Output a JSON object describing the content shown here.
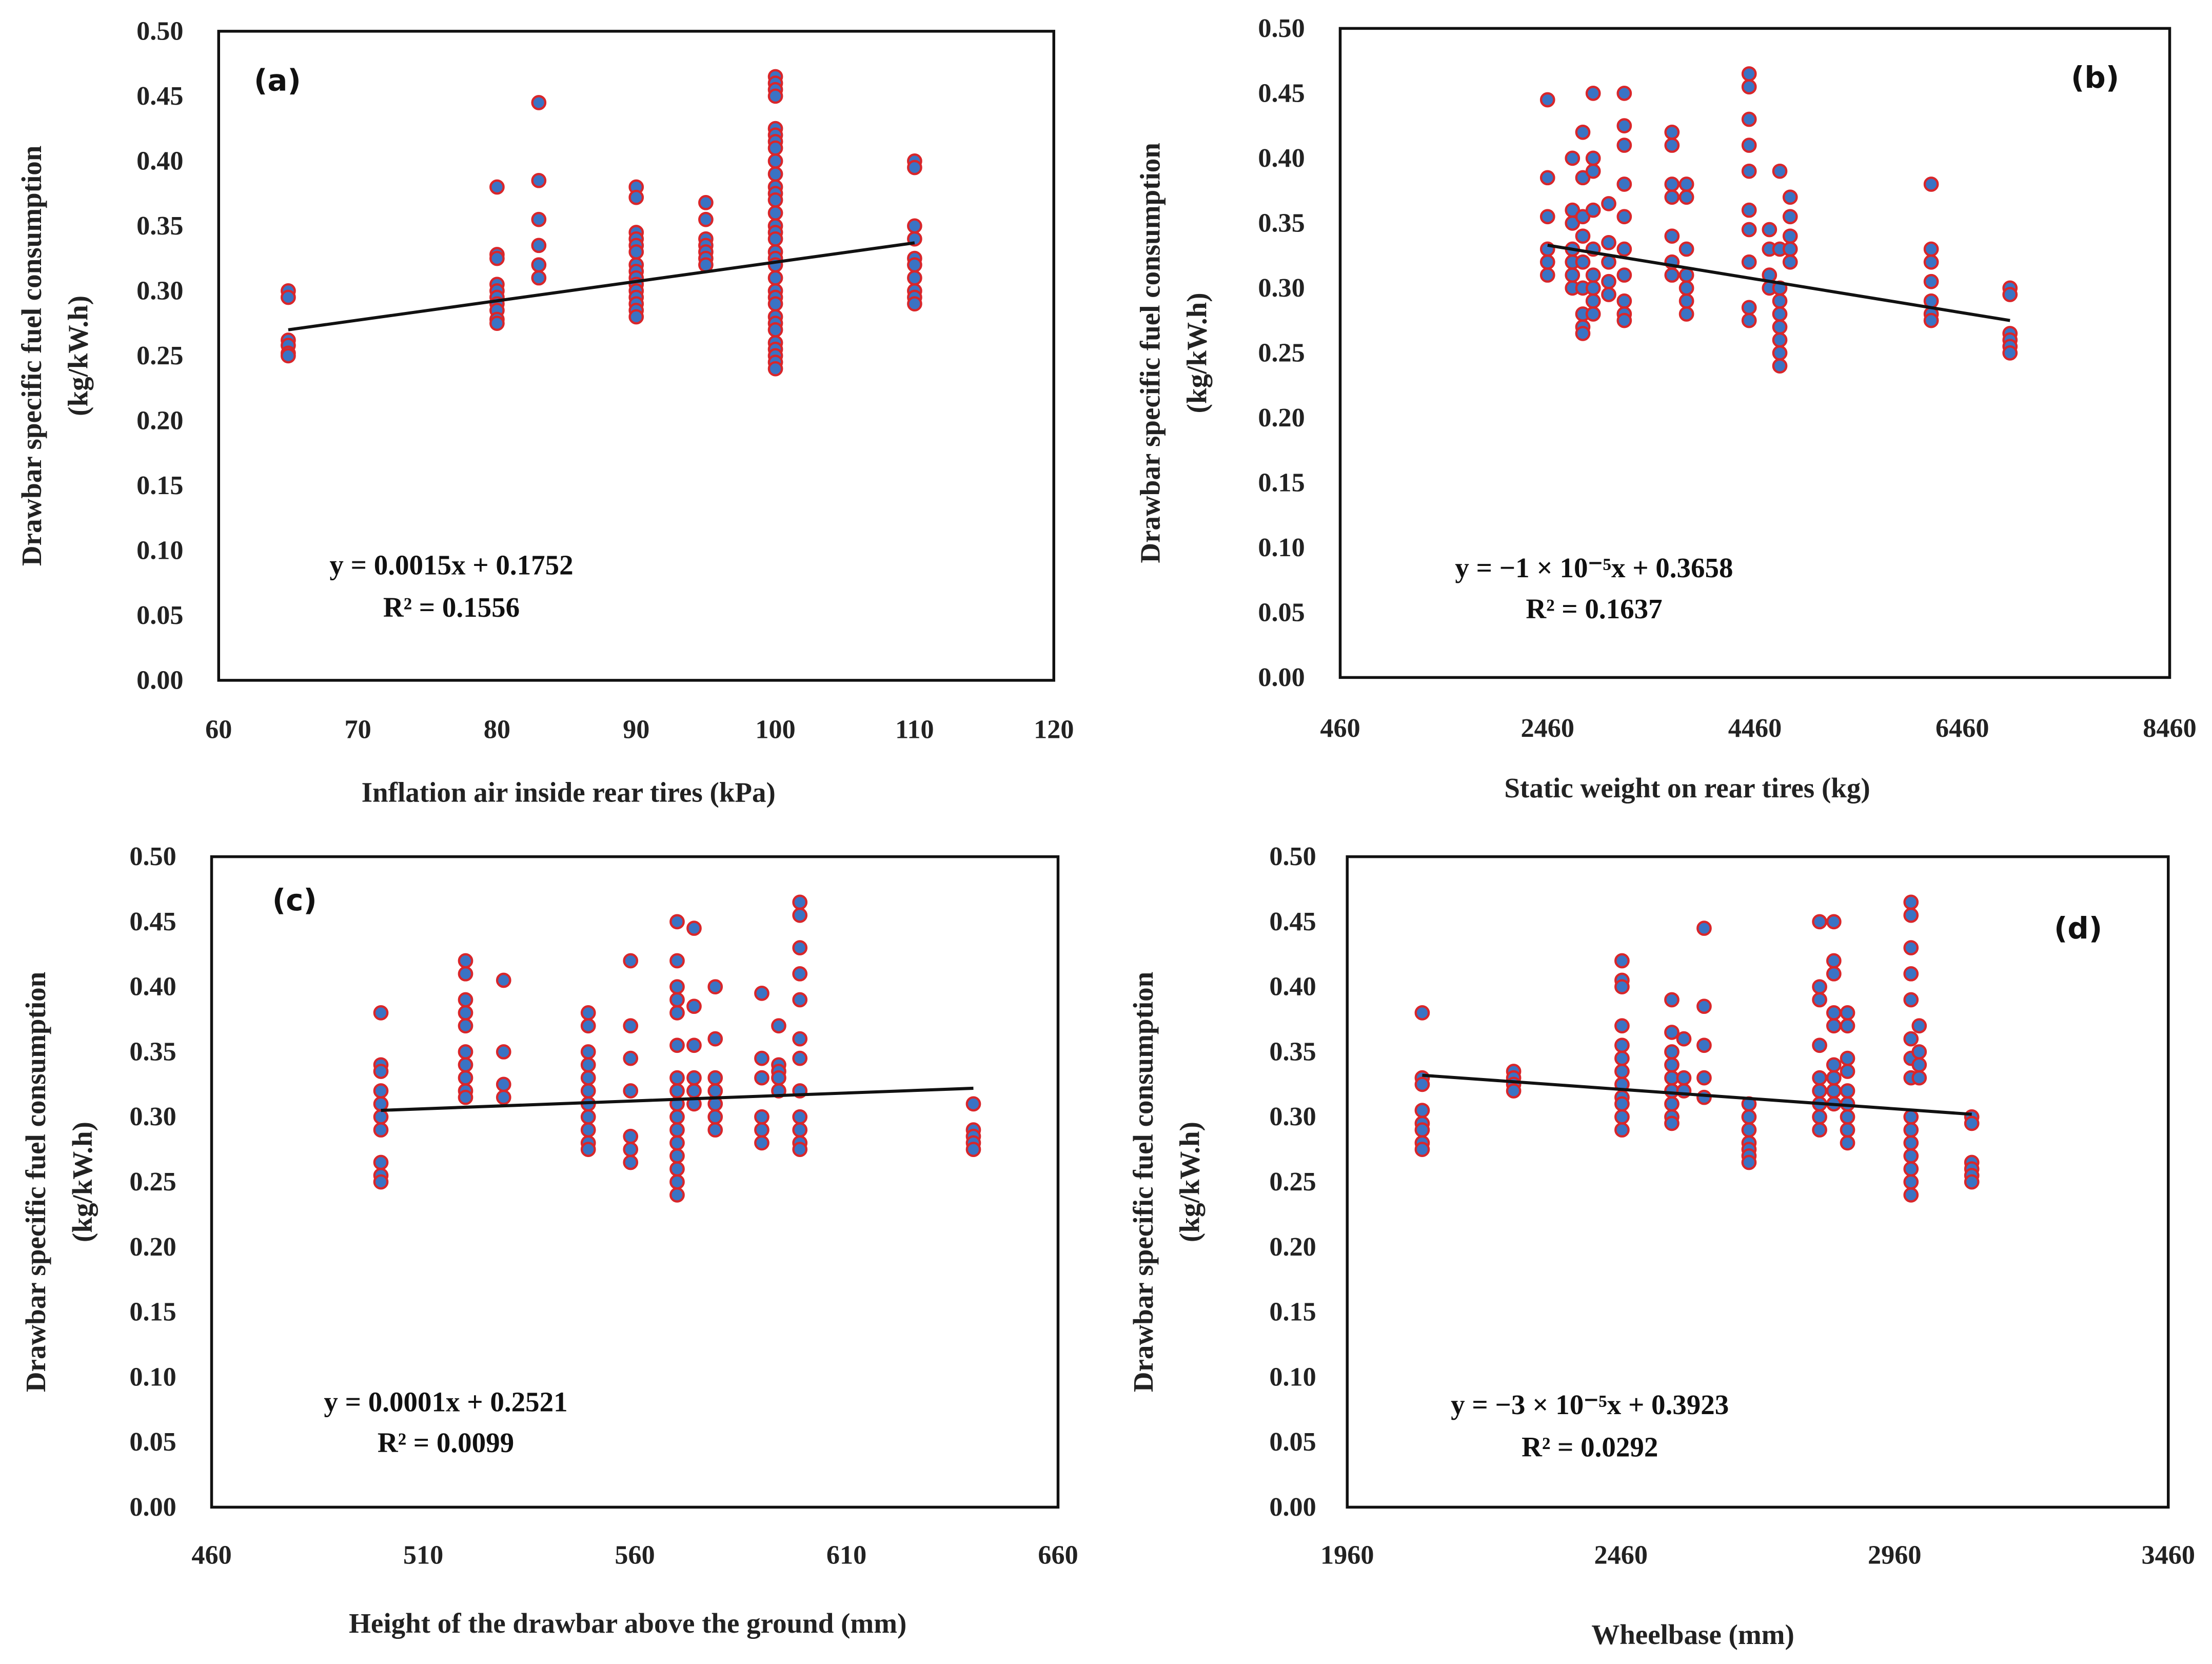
{
  "colors": {
    "marker_fill": "#3a73c4",
    "marker_edge": "#d9262a",
    "trendline": "#111111"
  },
  "chart_data": [
    {
      "type": "scatter",
      "panel": "(a)",
      "xlabel": "Inflation air inside rear tires (kPa)",
      "ylabel": [
        "Drawbar  specific fuel consumption",
        "(kg/kW.h)"
      ],
      "xlim": [
        60,
        120
      ],
      "ylim": [
        0,
        0.5
      ],
      "xticks": [
        "60",
        "70",
        "80",
        "90",
        "100",
        "110",
        "120"
      ],
      "yticks": [
        "0.00",
        "0.05",
        "0.10",
        "0.15",
        "0.20",
        "0.25",
        "0.30",
        "0.35",
        "0.40",
        "0.45",
        "0.50"
      ],
      "equation": "y = 0.0015x + 0.1752",
      "r2": "R² = 0.1556",
      "trendline": [
        [
          65,
          0.27
        ],
        [
          110,
          0.337
        ]
      ],
      "points": [
        [
          65,
          [
            0.3,
            0.295,
            0.262,
            0.258,
            0.252,
            0.25
          ]
        ],
        [
          80,
          [
            0.38,
            0.328,
            0.325,
            0.305,
            0.3,
            0.295,
            0.29,
            0.285,
            0.278,
            0.275
          ]
        ],
        [
          83,
          [
            0.445,
            0.385,
            0.355,
            0.335,
            0.32,
            0.31
          ]
        ],
        [
          90,
          [
            0.38,
            0.372,
            0.345,
            0.34,
            0.335,
            0.33,
            0.32,
            0.315,
            0.31,
            0.305,
            0.3,
            0.295,
            0.29,
            0.285,
            0.28
          ]
        ],
        [
          95,
          [
            0.368,
            0.355,
            0.34,
            0.335,
            0.33,
            0.325,
            0.32
          ]
        ],
        [
          100,
          [
            0.465,
            0.46,
            0.455,
            0.45,
            0.425,
            0.42,
            0.415,
            0.41,
            0.4,
            0.39,
            0.38,
            0.375,
            0.37,
            0.36,
            0.35,
            0.345,
            0.34,
            0.33,
            0.325,
            0.32,
            0.31,
            0.3,
            0.295,
            0.29,
            0.28,
            0.275,
            0.27,
            0.26,
            0.255,
            0.25,
            0.245,
            0.24
          ]
        ],
        [
          110,
          [
            0.4,
            0.395,
            0.35,
            0.34,
            0.325,
            0.32,
            0.31,
            0.3,
            0.295,
            0.29
          ]
        ]
      ]
    },
    {
      "type": "scatter",
      "panel": "(b)",
      "xlabel": "Static weight on rear tires (kg)",
      "ylabel": [
        "Drawbar specific fuel consumption",
        "(kg/kW.h)"
      ],
      "xlim": [
        460,
        8460
      ],
      "ylim": [
        0,
        0.5
      ],
      "xticks": [
        "460",
        "2460",
        "4460",
        "6460",
        "8460"
      ],
      "yticks": [
        "0.00",
        "0.05",
        "0.10",
        "0.15",
        "0.20",
        "0.25",
        "0.30",
        "0.35",
        "0.40",
        "0.45",
        "0.50"
      ],
      "equation": "y = −1 × 10⁻⁵x + 0.3658",
      "r2": "R² = 0.1637",
      "trendline": [
        [
          2460,
          0.333
        ],
        [
          6920,
          0.275
        ]
      ],
      "points": [
        [
          2460,
          [
            0.445,
            0.385,
            0.355,
            0.33,
            0.32,
            0.31
          ]
        ],
        [
          2700,
          [
            0.4,
            0.36,
            0.35,
            0.33,
            0.32,
            0.31,
            0.3
          ]
        ],
        [
          2800,
          [
            0.42,
            0.385,
            0.355,
            0.34,
            0.32,
            0.3,
            0.28,
            0.27,
            0.265
          ]
        ],
        [
          2900,
          [
            0.45,
            0.4,
            0.39,
            0.36,
            0.33,
            0.31,
            0.3,
            0.29,
            0.28
          ]
        ],
        [
          3050,
          [
            0.365,
            0.335,
            0.32,
            0.305,
            0.295
          ]
        ],
        [
          3200,
          [
            0.45,
            0.425,
            0.41,
            0.38,
            0.355,
            0.33,
            0.31,
            0.29,
            0.28,
            0.275
          ]
        ],
        [
          3660,
          [
            0.42,
            0.41,
            0.38,
            0.37,
            0.34,
            0.32,
            0.31
          ]
        ],
        [
          3800,
          [
            0.38,
            0.37,
            0.33,
            0.31,
            0.3,
            0.29,
            0.28
          ]
        ],
        [
          4404,
          [
            0.465,
            0.455,
            0.43,
            0.41,
            0.39,
            0.36,
            0.345,
            0.32,
            0.285,
            0.275
          ]
        ],
        [
          4600,
          [
            0.345,
            0.33,
            0.31,
            0.3
          ]
        ],
        [
          4700,
          [
            0.39,
            0.33,
            0.3,
            0.29,
            0.28,
            0.27,
            0.26,
            0.25,
            0.24
          ]
        ],
        [
          4800,
          [
            0.37,
            0.355,
            0.34,
            0.33,
            0.32
          ]
        ],
        [
          6160,
          [
            0.38,
            0.33,
            0.32,
            0.305,
            0.29,
            0.28,
            0.275
          ]
        ],
        [
          6920,
          [
            0.3,
            0.295,
            0.265,
            0.26,
            0.255,
            0.25
          ]
        ]
      ]
    },
    {
      "type": "scatter",
      "panel": "(c)",
      "xlabel": "Height of the drawbar above the ground (mm)",
      "ylabel": [
        "Drawbar  specific fuel consumption",
        "(kg/kW.h)"
      ],
      "xlim": [
        460,
        660
      ],
      "ylim": [
        0,
        0.5
      ],
      "xticks": [
        "460",
        "510",
        "560",
        "610",
        "660"
      ],
      "yticks": [
        "0.00",
        "0.05",
        "0.10",
        "0.15",
        "0.20",
        "0.25",
        "0.30",
        "0.35",
        "0.40",
        "0.45",
        "0.50"
      ],
      "equation": "y = 0.0001x + 0.2521",
      "r2": "R² = 0.0099",
      "trendline": [
        [
          500,
          0.305
        ],
        [
          640,
          0.322
        ]
      ],
      "points": [
        [
          500,
          [
            0.38,
            0.34,
            0.335,
            0.32,
            0.31,
            0.3,
            0.29,
            0.265,
            0.255,
            0.25
          ]
        ],
        [
          520,
          [
            0.42,
            0.41,
            0.39,
            0.38,
            0.37,
            0.35,
            0.34,
            0.33,
            0.32,
            0.315
          ]
        ],
        [
          529,
          [
            0.405,
            0.35,
            0.325,
            0.315
          ]
        ],
        [
          549,
          [
            0.38,
            0.37,
            0.35,
            0.34,
            0.33,
            0.32,
            0.31,
            0.3,
            0.29,
            0.28,
            0.275
          ]
        ],
        [
          559,
          [
            0.42,
            0.37,
            0.345,
            0.32,
            0.285,
            0.275,
            0.265
          ]
        ],
        [
          570,
          [
            0.45,
            0.42,
            0.4,
            0.39,
            0.38,
            0.355,
            0.33,
            0.32,
            0.31,
            0.3,
            0.29,
            0.28,
            0.27,
            0.26,
            0.25,
            0.24
          ]
        ],
        [
          574,
          [
            0.445,
            0.385,
            0.355,
            0.33,
            0.32,
            0.31
          ]
        ],
        [
          579,
          [
            0.4,
            0.36,
            0.33,
            0.32,
            0.31,
            0.3,
            0.29
          ]
        ],
        [
          590,
          [
            0.395,
            0.345,
            0.33,
            0.3,
            0.29,
            0.28
          ]
        ],
        [
          594,
          [
            0.37,
            0.34,
            0.335,
            0.33,
            0.32
          ]
        ],
        [
          599,
          [
            0.465,
            0.455,
            0.43,
            0.41,
            0.39,
            0.36,
            0.345,
            0.32,
            0.3,
            0.29,
            0.28,
            0.275
          ]
        ],
        [
          640,
          [
            0.31,
            0.29,
            0.285,
            0.28,
            0.275
          ]
        ]
      ]
    },
    {
      "type": "scatter",
      "panel": "(d)",
      "xlabel": "Wheelbase (mm)",
      "ylabel": [
        "Drawbar specific fuel consumption",
        "(kg/kW.h)"
      ],
      "xlim": [
        1960,
        3460
      ],
      "ylim": [
        0,
        0.5
      ],
      "xticks": [
        "1960",
        "2460",
        "2960",
        "3460"
      ],
      "yticks": [
        "0.00",
        "0.05",
        "0.10",
        "0.15",
        "0.20",
        "0.25",
        "0.30",
        "0.35",
        "0.40",
        "0.45",
        "0.50"
      ],
      "equation": "y = −3 × 10⁻⁵x + 0.3923",
      "r2": "R² = 0.0292",
      "trendline": [
        [
          2097,
          0.332
        ],
        [
          3101,
          0.302
        ]
      ],
      "points": [
        [
          2097,
          [
            0.38,
            0.33,
            0.325,
            0.305,
            0.295,
            0.29,
            0.28,
            0.275
          ]
        ],
        [
          2264,
          [
            0.335,
            0.33,
            0.325,
            0.32
          ]
        ],
        [
          2462,
          [
            0.42,
            0.405,
            0.4,
            0.37,
            0.355,
            0.345,
            0.335,
            0.325,
            0.315,
            0.31,
            0.3,
            0.29
          ]
        ],
        [
          2553,
          [
            0.39,
            0.365,
            0.35,
            0.34,
            0.33,
            0.32,
            0.31,
            0.3,
            0.295
          ]
        ],
        [
          2575,
          [
            0.36,
            0.33,
            0.32
          ]
        ],
        [
          2612,
          [
            0.445,
            0.385,
            0.355,
            0.33,
            0.315
          ]
        ],
        [
          2694,
          [
            0.31,
            0.3,
            0.29,
            0.28,
            0.275,
            0.27,
            0.265
          ]
        ],
        [
          2823,
          [
            0.45,
            0.4,
            0.39,
            0.355,
            0.33,
            0.32,
            0.31,
            0.3,
            0.29
          ]
        ],
        [
          2849,
          [
            0.45,
            0.42,
            0.41,
            0.38,
            0.37,
            0.34,
            0.33,
            0.32,
            0.31
          ]
        ],
        [
          2874,
          [
            0.38,
            0.37,
            0.345,
            0.335,
            0.32,
            0.31,
            0.3,
            0.29,
            0.28
          ]
        ],
        [
          2990,
          [
            0.465,
            0.455,
            0.43,
            0.41,
            0.39,
            0.36,
            0.345,
            0.33,
            0.3,
            0.29,
            0.28,
            0.27,
            0.26,
            0.25,
            0.24
          ]
        ],
        [
          3005,
          [
            0.37,
            0.35,
            0.34,
            0.33
          ]
        ],
        [
          3101,
          [
            0.3,
            0.295,
            0.265,
            0.26,
            0.255,
            0.25
          ]
        ]
      ]
    }
  ]
}
